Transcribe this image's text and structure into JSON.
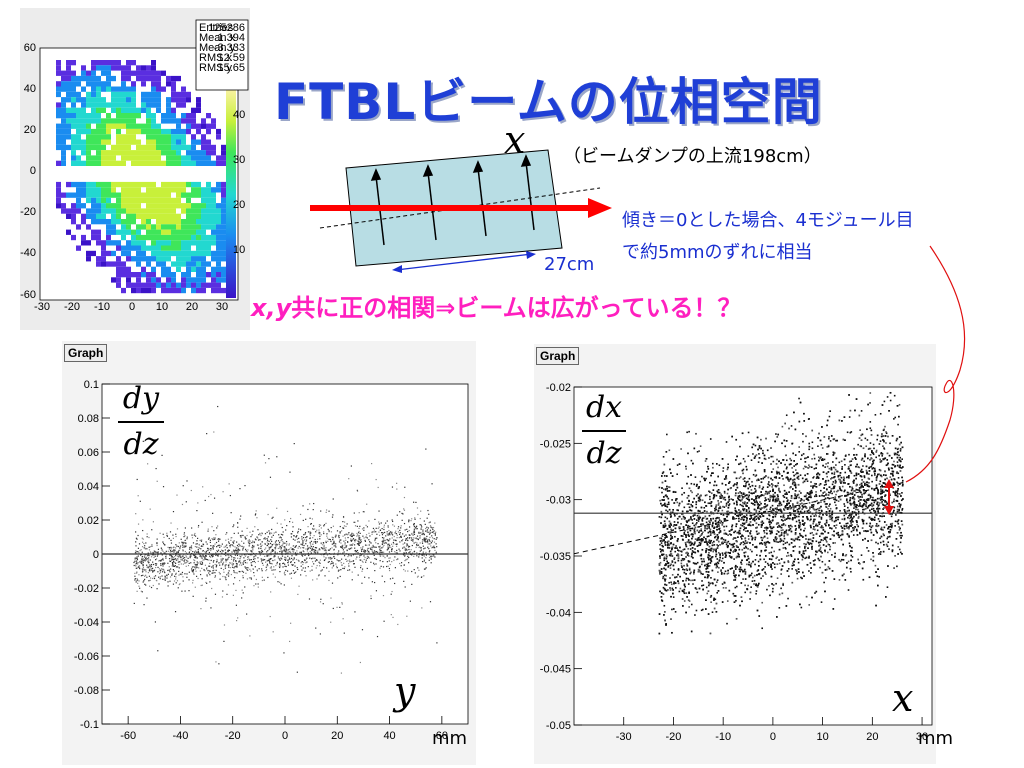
{
  "slide": {
    "title": "FTBLビームの位相空間",
    "x_symbol": "x",
    "subtitle": "（ビームダンプの上流198cm）",
    "note_line1": "傾き＝0とした場合、4モジュール目",
    "note_line2": "で約5mmのずれに相当",
    "dim_label": "27cm",
    "correlation_prefix": "x,y",
    "correlation_text": "共に正の相関⇒ビームは広がっている！？"
  },
  "colors": {
    "title": "#1f3fd6",
    "note": "#1a2fd0",
    "highlight": "#ff1fbf",
    "beam_arrow": "#ff0000",
    "box_fill": "#b8dde4"
  },
  "histogram": {
    "stats": [
      {
        "label": "Entries",
        "value": "125286"
      },
      {
        "label": "Mean x",
        "value": "1.394"
      },
      {
        "label": "Mean y",
        "value": "-3.333"
      },
      {
        "label": "RMS x",
        "value": "12.59"
      },
      {
        "label": "RMS y",
        "value": "15.65"
      }
    ],
    "y_ticks": [
      "60",
      "40",
      "20",
      "0",
      "-20",
      "-40",
      "-60"
    ],
    "x_ticks": [
      "-30",
      "-20",
      "-10",
      "0",
      "10",
      "20",
      "30"
    ],
    "z_ticks": [
      "40",
      "30",
      "20",
      "10"
    ]
  },
  "chart_data": [
    {
      "type": "scatter",
      "tab_label": "Graph",
      "ylabel_num": "dy",
      "ylabel_den": "dz",
      "xlabel": "y",
      "unit": "mm",
      "xlim": [
        -70,
        70
      ],
      "ylim": [
        -0.1,
        0.1
      ],
      "x_ticks": [
        -60,
        -40,
        -20,
        0,
        20,
        40,
        60
      ],
      "y_ticks": [
        0.1,
        0.08,
        0.06,
        0.04,
        0.02,
        0,
        -0.02,
        -0.04,
        -0.06,
        -0.08,
        -0.1
      ],
      "fit_line": {
        "x": [
          -70,
          70
        ],
        "y": [
          0,
          0
        ]
      }
    },
    {
      "type": "scatter",
      "tab_label": "Graph",
      "ylabel_num": "dx",
      "ylabel_den": "dz",
      "xlabel": "x",
      "unit": "mm",
      "xlim": [
        -40,
        32
      ],
      "ylim": [
        -0.05,
        -0.02
      ],
      "x_ticks": [
        -30,
        -20,
        -10,
        0,
        10,
        20,
        30
      ],
      "y_ticks": [
        -0.02,
        -0.025,
        -0.03,
        -0.035,
        -0.04,
        -0.045,
        -0.05
      ],
      "fit_line": {
        "x": [
          -40,
          32
        ],
        "y": [
          -0.0312,
          -0.0312
        ]
      },
      "dashed_line": {
        "x": [
          -40,
          26
        ],
        "y": [
          -0.0348,
          -0.0285
        ]
      }
    }
  ]
}
